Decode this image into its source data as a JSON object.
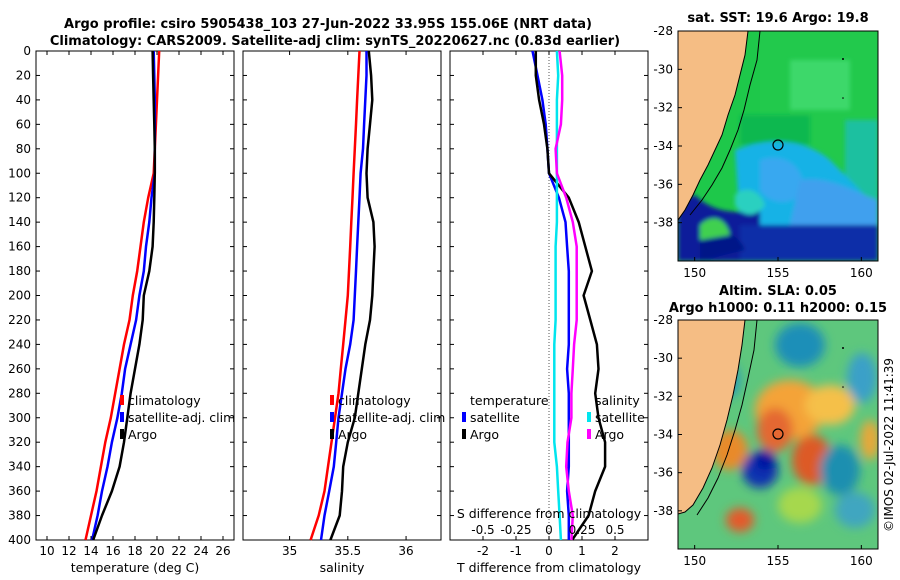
{
  "title": {
    "line1": "Argo profile: csiro 5905438_103 27-Jun-2022 33.95S 155.06E (NRT data)",
    "line2": "Climatology: CARS2009. Satellite-adj clim: synTS_20220627.nc (0.83d earlier)"
  },
  "colors": {
    "clim": "#ff0000",
    "sat": "#0000ff",
    "argo": "#000000",
    "sat_s": "#00e5ee",
    "argo_s": "#ff00ff"
  },
  "depth_ticks": [
    "0",
    "20",
    "40",
    "60",
    "80",
    "100",
    "120",
    "140",
    "160",
    "180",
    "200",
    "220",
    "240",
    "260",
    "280",
    "300",
    "320",
    "340",
    "360",
    "380",
    "400"
  ],
  "chart_data": [
    {
      "type": "line",
      "id": "temperature",
      "xlabel": "temperature (deg C)",
      "ylabel": "",
      "xlim": [
        9,
        27
      ],
      "ylim": [
        400,
        0
      ],
      "xticks": [
        "10",
        "12",
        "14",
        "16",
        "18",
        "20",
        "22",
        "24",
        "26"
      ],
      "legend": [
        "climatology",
        "satellite-adj. clim",
        "Argo"
      ],
      "series": [
        {
          "name": "climatology",
          "depth": [
            0,
            20,
            40,
            60,
            80,
            100,
            120,
            140,
            160,
            180,
            200,
            220,
            240,
            260,
            280,
            300,
            320,
            340,
            360,
            380,
            400
          ],
          "values": [
            20.2,
            20.1,
            20.0,
            19.9,
            19.8,
            19.7,
            19.2,
            18.8,
            18.5,
            18.2,
            17.8,
            17.5,
            17.0,
            16.6,
            16.2,
            15.8,
            15.3,
            14.9,
            14.5,
            14.0,
            13.5
          ]
        },
        {
          "name": "satellite-adj. clim",
          "depth": [
            0,
            20,
            40,
            60,
            80,
            100,
            120,
            140,
            160,
            180,
            200,
            220,
            240,
            260,
            280,
            300,
            320,
            340,
            360,
            380,
            400
          ],
          "values": [
            19.7,
            19.75,
            19.8,
            19.8,
            19.8,
            19.8,
            19.5,
            19.3,
            19.0,
            18.8,
            18.4,
            18.1,
            17.6,
            17.1,
            16.8,
            16.4,
            15.9,
            15.5,
            15.0,
            14.6,
            14.1
          ]
        },
        {
          "name": "Argo",
          "depth": [
            0,
            20,
            40,
            60,
            80,
            100,
            120,
            140,
            160,
            180,
            200,
            220,
            240,
            260,
            280,
            300,
            320,
            340,
            360,
            380,
            400
          ],
          "values": [
            19.6,
            19.65,
            19.7,
            19.75,
            19.8,
            19.8,
            19.75,
            19.7,
            19.6,
            19.3,
            18.8,
            18.7,
            18.4,
            18.0,
            17.6,
            17.3,
            17.0,
            16.6,
            15.9,
            15.0,
            14.2
          ]
        }
      ]
    },
    {
      "type": "line",
      "id": "salinity",
      "xlabel": "salinity",
      "xlim": [
        34.6,
        36.3
      ],
      "ylim": [
        400,
        0
      ],
      "xticks": [
        "35",
        "35.5",
        "36"
      ],
      "legend": [
        "climatology",
        "satellite-adj. clim",
        "Argo"
      ],
      "series": [
        {
          "name": "climatology",
          "depth": [
            0,
            20,
            40,
            60,
            80,
            100,
            120,
            140,
            160,
            180,
            200,
            220,
            240,
            260,
            280,
            300,
            320,
            340,
            360,
            380,
            400
          ],
          "values": [
            35.6,
            35.59,
            35.58,
            35.57,
            35.56,
            35.55,
            35.54,
            35.53,
            35.52,
            35.51,
            35.5,
            35.48,
            35.46,
            35.44,
            35.42,
            35.39,
            35.36,
            35.33,
            35.3,
            35.25,
            35.18
          ]
        },
        {
          "name": "satellite-adj. clim",
          "depth": [
            0,
            20,
            40,
            60,
            80,
            100,
            120,
            140,
            160,
            180,
            200,
            220,
            240,
            260,
            280,
            300,
            320,
            340,
            360,
            380,
            400
          ],
          "values": [
            35.66,
            35.66,
            35.65,
            35.64,
            35.63,
            35.61,
            35.6,
            35.59,
            35.58,
            35.57,
            35.56,
            35.55,
            35.52,
            35.48,
            35.45,
            35.42,
            35.4,
            35.38,
            35.34,
            35.3,
            35.27
          ]
        },
        {
          "name": "Argo",
          "depth": [
            0,
            20,
            40,
            60,
            80,
            100,
            120,
            140,
            160,
            180,
            200,
            220,
            240,
            260,
            280,
            300,
            320,
            340,
            360,
            380,
            400
          ],
          "values": [
            35.68,
            35.7,
            35.71,
            35.69,
            35.67,
            35.66,
            35.67,
            35.72,
            35.73,
            35.72,
            35.71,
            35.69,
            35.65,
            35.62,
            35.59,
            35.56,
            35.5,
            35.46,
            35.45,
            35.43,
            35.35
          ]
        }
      ]
    },
    {
      "type": "line",
      "id": "difference",
      "xlabel": "T difference from climatology",
      "xlabel_top": "S difference from climatology",
      "xlim": [
        -3,
        3
      ],
      "ylim": [
        400,
        0
      ],
      "xticks": [
        "-2",
        "-1",
        "0",
        "1",
        "2"
      ],
      "xticks_s": [
        "-0.5",
        "-0.25",
        "0",
        "0.25",
        "0.5"
      ],
      "legend_t": {
        "title": "temperature",
        "items": [
          "satellite",
          "Argo"
        ]
      },
      "legend_s": {
        "title": "salinity",
        "items": [
          "satellite",
          "Argo"
        ]
      },
      "series": [
        {
          "name": "T satellite",
          "depth": [
            0,
            20,
            40,
            60,
            80,
            100,
            120,
            140,
            160,
            180,
            200,
            220,
            240,
            260,
            280,
            300,
            320,
            340,
            360,
            380,
            400
          ],
          "values": [
            -0.5,
            -0.35,
            -0.2,
            -0.1,
            -0.05,
            0.0,
            0.3,
            0.5,
            0.55,
            0.6,
            0.6,
            0.6,
            0.6,
            0.55,
            0.6,
            0.6,
            0.6,
            0.6,
            0.55,
            0.6,
            0.6
          ]
        },
        {
          "name": "T Argo",
          "depth": [
            0,
            20,
            40,
            60,
            80,
            100,
            120,
            140,
            160,
            180,
            200,
            220,
            240,
            260,
            280,
            300,
            320,
            340,
            360,
            380,
            400
          ],
          "values": [
            -0.4,
            -0.4,
            -0.3,
            -0.15,
            -0.05,
            0.0,
            0.6,
            0.9,
            1.1,
            1.3,
            1.05,
            1.25,
            1.45,
            1.5,
            1.4,
            1.5,
            1.7,
            1.7,
            1.4,
            1.2,
            0.7
          ]
        },
        {
          "name": "S satellite",
          "depth": [
            0,
            20,
            40,
            60,
            80,
            100,
            120,
            140,
            160,
            180,
            200,
            220,
            240,
            260,
            280,
            300,
            320,
            340,
            360,
            380,
            400
          ],
          "values": [
            0.06,
            0.07,
            0.06,
            0.06,
            0.06,
            0.06,
            0.06,
            0.06,
            0.05,
            0.05,
            0.05,
            0.05,
            0.04,
            0.04,
            0.04,
            0.04,
            0.04,
            0.06,
            0.07,
            0.08,
            0.09
          ]
        },
        {
          "name": "S Argo",
          "depth": [
            0,
            20,
            40,
            60,
            80,
            100,
            120,
            140,
            160,
            180,
            200,
            220,
            240,
            260,
            280,
            300,
            320,
            340,
            360,
            380,
            400
          ],
          "values": [
            0.08,
            0.1,
            0.1,
            0.09,
            0.05,
            0.06,
            0.13,
            0.18,
            0.21,
            0.21,
            0.21,
            0.21,
            0.19,
            0.18,
            0.17,
            0.17,
            0.14,
            0.13,
            0.15,
            0.18,
            0.17
          ]
        }
      ]
    },
    {
      "type": "heatmap",
      "id": "sst_map",
      "title": "sat. SST: 19.6 Argo: 19.8",
      "xlim": [
        149,
        161
      ],
      "ylim": [
        -40,
        -28
      ],
      "xticks": [
        "150",
        "155",
        "160"
      ],
      "yticks": [
        "-28",
        "-30",
        "-32",
        "-34",
        "-36",
        "-38"
      ],
      "marker": {
        "lon": 155.06,
        "lat": -33.95
      }
    },
    {
      "type": "heatmap",
      "id": "sla_map",
      "title_line1": "Altim. SLA: 0.05",
      "title_line2": "Argo h1000: 0.11 h2000: 0.15",
      "xlim": [
        149,
        161
      ],
      "ylim": [
        -40,
        -28
      ],
      "xticks": [
        "150",
        "155",
        "160"
      ],
      "yticks": [
        "-28",
        "-30",
        "-32",
        "-34",
        "-36",
        "-38"
      ],
      "marker": {
        "lon": 155.06,
        "lat": -33.95
      }
    }
  ],
  "watermark": "©IMOS 02-Jul-2022 11:41:39"
}
